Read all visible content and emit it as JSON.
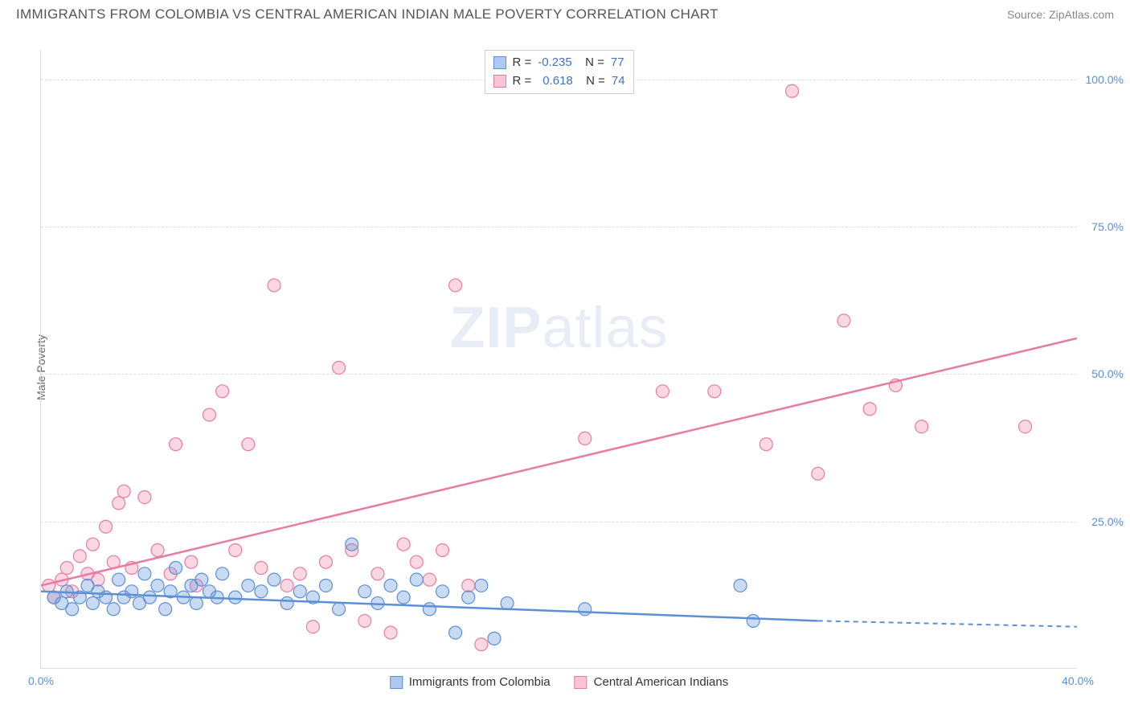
{
  "header": {
    "title": "IMMIGRANTS FROM COLOMBIA VS CENTRAL AMERICAN INDIAN MALE POVERTY CORRELATION CHART",
    "source": "Source: ZipAtlas.com"
  },
  "chart": {
    "type": "scatter",
    "y_label": "Male Poverty",
    "watermark": "ZIPatlas",
    "background_color": "#ffffff",
    "grid_color": "#dddddd",
    "tick_color": "#5b8fd6",
    "xlim": [
      0,
      40
    ],
    "ylim": [
      0,
      105
    ],
    "x_ticks": [
      {
        "value": 0,
        "label": "0.0%"
      },
      {
        "value": 40,
        "label": "40.0%"
      }
    ],
    "y_ticks": [
      {
        "value": 25,
        "label": "25.0%"
      },
      {
        "value": 50,
        "label": "50.0%"
      },
      {
        "value": 75,
        "label": "75.0%"
      },
      {
        "value": 100,
        "label": "100.0%"
      }
    ],
    "series": [
      {
        "name": "Immigrants from Colombia",
        "color_fill": "rgba(100,150,220,0.35)",
        "color_stroke": "#5b8fd6",
        "legend_fill": "#aecbef",
        "legend_stroke": "#5b8fd6",
        "r_value": "-0.235",
        "n_value": "77",
        "trend": {
          "x1": 0,
          "y1": 13,
          "x2": 30,
          "y2": 8,
          "dash_from": 30,
          "dash_to": 40,
          "dash_y": 7
        },
        "marker_r": 8,
        "points": [
          [
            0.5,
            12
          ],
          [
            0.8,
            11
          ],
          [
            1.0,
            13
          ],
          [
            1.2,
            10
          ],
          [
            1.5,
            12
          ],
          [
            1.8,
            14
          ],
          [
            2.0,
            11
          ],
          [
            2.2,
            13
          ],
          [
            2.5,
            12
          ],
          [
            2.8,
            10
          ],
          [
            3.0,
            15
          ],
          [
            3.2,
            12
          ],
          [
            3.5,
            13
          ],
          [
            3.8,
            11
          ],
          [
            4.0,
            16
          ],
          [
            4.2,
            12
          ],
          [
            4.5,
            14
          ],
          [
            4.8,
            10
          ],
          [
            5.0,
            13
          ],
          [
            5.2,
            17
          ],
          [
            5.5,
            12
          ],
          [
            5.8,
            14
          ],
          [
            6.0,
            11
          ],
          [
            6.2,
            15
          ],
          [
            6.5,
            13
          ],
          [
            6.8,
            12
          ],
          [
            7.0,
            16
          ],
          [
            7.5,
            12
          ],
          [
            8.0,
            14
          ],
          [
            8.5,
            13
          ],
          [
            9.0,
            15
          ],
          [
            9.5,
            11
          ],
          [
            10.0,
            13
          ],
          [
            10.5,
            12
          ],
          [
            11.0,
            14
          ],
          [
            11.5,
            10
          ],
          [
            12.0,
            21
          ],
          [
            12.5,
            13
          ],
          [
            13.0,
            11
          ],
          [
            13.5,
            14
          ],
          [
            14.0,
            12
          ],
          [
            14.5,
            15
          ],
          [
            15.0,
            10
          ],
          [
            15.5,
            13
          ],
          [
            16.0,
            6
          ],
          [
            16.5,
            12
          ],
          [
            17.0,
            14
          ],
          [
            17.5,
            5
          ],
          [
            18.0,
            11
          ],
          [
            21.0,
            10
          ],
          [
            27.0,
            14
          ],
          [
            27.5,
            8
          ]
        ]
      },
      {
        "name": "Central American Indians",
        "color_fill": "rgba(240,140,170,0.35)",
        "color_stroke": "#e87ba3",
        "legend_fill": "#f7c5d6",
        "legend_stroke": "#e87ba3",
        "r_value": "0.618",
        "n_value": "74",
        "trend": {
          "x1": 0,
          "y1": 14,
          "x2": 40,
          "y2": 56
        },
        "marker_r": 8,
        "points": [
          [
            0.3,
            14
          ],
          [
            0.5,
            12
          ],
          [
            0.8,
            15
          ],
          [
            1.0,
            17
          ],
          [
            1.2,
            13
          ],
          [
            1.5,
            19
          ],
          [
            1.8,
            16
          ],
          [
            2.0,
            21
          ],
          [
            2.2,
            15
          ],
          [
            2.5,
            24
          ],
          [
            2.8,
            18
          ],
          [
            3.0,
            28
          ],
          [
            3.2,
            30
          ],
          [
            3.5,
            17
          ],
          [
            4.0,
            29
          ],
          [
            4.5,
            20
          ],
          [
            5.0,
            16
          ],
          [
            5.2,
            38
          ],
          [
            5.8,
            18
          ],
          [
            6.0,
            14
          ],
          [
            6.5,
            43
          ],
          [
            7.0,
            47
          ],
          [
            7.5,
            20
          ],
          [
            8.0,
            38
          ],
          [
            8.5,
            17
          ],
          [
            9.0,
            65
          ],
          [
            9.5,
            14
          ],
          [
            10.0,
            16
          ],
          [
            10.5,
            7
          ],
          [
            11.0,
            18
          ],
          [
            11.5,
            51
          ],
          [
            12.0,
            20
          ],
          [
            12.5,
            8
          ],
          [
            13.0,
            16
          ],
          [
            13.5,
            6
          ],
          [
            14.0,
            21
          ],
          [
            14.5,
            18
          ],
          [
            15.0,
            15
          ],
          [
            15.5,
            20
          ],
          [
            16.0,
            65
          ],
          [
            16.5,
            14
          ],
          [
            17.0,
            4
          ],
          [
            21.0,
            39
          ],
          [
            24.0,
            47
          ],
          [
            26.0,
            47
          ],
          [
            28.0,
            38
          ],
          [
            29.0,
            98
          ],
          [
            30.0,
            33
          ],
          [
            31.0,
            59
          ],
          [
            32.0,
            44
          ],
          [
            33.0,
            48
          ],
          [
            34.0,
            41
          ],
          [
            38.0,
            41
          ]
        ]
      }
    ],
    "legend_bottom": [
      {
        "label": "Immigrants from Colombia",
        "fill": "#aecbef",
        "stroke": "#5b8fd6"
      },
      {
        "label": "Central American Indians",
        "fill": "#f7c5d6",
        "stroke": "#e87ba3"
      }
    ]
  }
}
